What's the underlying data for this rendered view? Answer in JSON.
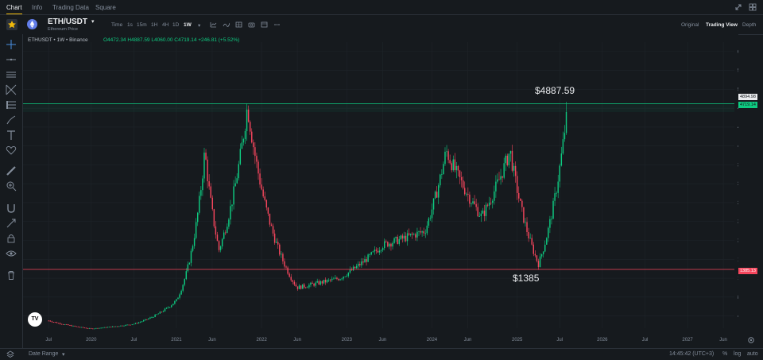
{
  "nav": {
    "tabs": [
      "Chart",
      "Info",
      "Trading Data",
      "Square"
    ]
  },
  "header": {
    "symbol": "ETH/USDT",
    "subtitle": "Ethereum Price",
    "timeframes": [
      "Time",
      "1s",
      "15m",
      "1H",
      "4H",
      "1D",
      "1W"
    ],
    "active_timeframe": "1W",
    "views": [
      "Original",
      "Trading View",
      "Depth"
    ],
    "active_view": "Trading View"
  },
  "legend": {
    "pair_line": "ETHUSDT • 1W • Binance",
    "ohlc": "O4472.34 H4887.59 L4060.00 C4719.14 +246.81 (+5.52%)"
  },
  "annotations": {
    "high": "$4887.59",
    "low": "$1385"
  },
  "price_tags": {
    "top": "4894.98",
    "current": "4719.14",
    "support": "1385.13"
  },
  "bottom": {
    "date_range": "Date Range",
    "clock": "14:45:42 (UTC+3)",
    "pct": "%",
    "log": "log",
    "auto": "auto"
  },
  "colors": {
    "up": "#0ecb81",
    "down": "#f6465d",
    "support": "#f6465d",
    "resistance": "#0ecb81",
    "accent": "#f0b90b"
  },
  "chart_data": {
    "type": "candlestick",
    "title": "",
    "y_ticks": [
      400,
      800,
      1200,
      1600,
      2000,
      2400,
      2800,
      3200,
      3600,
      4000,
      4400,
      4800,
      5200,
      5600,
      6000
    ],
    "x_ticks": [
      "Jul",
      "2020",
      "Jul",
      "2021",
      "Jun",
      "2022",
      "Jun",
      "2023",
      "Jun",
      "2024",
      "Jun",
      "2025",
      "Jul",
      "2026",
      "Jul",
      "2027",
      "Jun"
    ],
    "ylim": [
      140,
      6200
    ],
    "resistance": 4894.98,
    "support": 1385.13,
    "series": [
      {
        "x": "2019-07",
        "close": 300
      },
      {
        "x": "2020-01",
        "close": 130
      },
      {
        "x": "2020-07",
        "close": 230
      },
      {
        "x": "2021-01",
        "close": 730
      },
      {
        "x": "2021-05",
        "close": 3900
      },
      {
        "x": "2021-07",
        "close": 1800
      },
      {
        "x": "2021-11",
        "close": 4850
      },
      {
        "x": "2022-06",
        "close": 1000
      },
      {
        "x": "2022-12",
        "close": 1200
      },
      {
        "x": "2023-06",
        "close": 1900
      },
      {
        "x": "2023-12",
        "close": 2200
      },
      {
        "x": "2024-03",
        "close": 3900
      },
      {
        "x": "2024-08",
        "close": 2500
      },
      {
        "x": "2024-12",
        "close": 3900
      },
      {
        "x": "2025-04",
        "close": 1500
      },
      {
        "x": "2025-08",
        "close": 4719.14
      }
    ]
  }
}
